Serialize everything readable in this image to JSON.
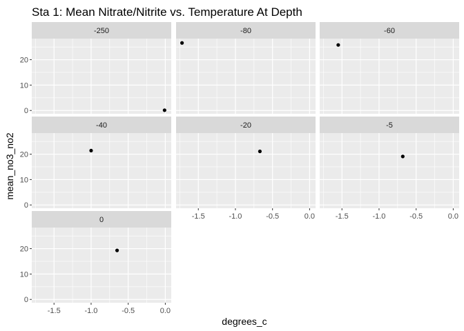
{
  "chart_data": {
    "type": "scatter",
    "title": "Sta 1: Mean Nitrate/Nitrite vs. Temperature At Depth",
    "xlabel": "degrees_c",
    "ylabel": "mean_no3_no2",
    "xlim": [
      -1.8,
      0.08
    ],
    "ylim": [
      -1.3,
      28.3
    ],
    "x_ticks": [
      -1.5,
      -1.0,
      -0.5,
      0.0
    ],
    "x_tick_labels": [
      "-1.5",
      "-1.0",
      "-0.5",
      "0.0"
    ],
    "y_ticks": [
      0,
      10,
      20
    ],
    "y_tick_labels": [
      "0",
      "10",
      "20"
    ],
    "grid": true,
    "legend": "none",
    "point_color": "#000000",
    "panel_background": "#ebebeb",
    "strip_background": "#d9d9d9",
    "panels": [
      {
        "label": "-250",
        "x": -0.01,
        "y": 0.1
      },
      {
        "label": "-80",
        "x": -1.72,
        "y": 26.6
      },
      {
        "label": "-60",
        "x": -1.55,
        "y": 25.8
      },
      {
        "label": "-40",
        "x": -1.0,
        "y": 21.4
      },
      {
        "label": "-20",
        "x": -0.67,
        "y": 21.1
      },
      {
        "label": "-5",
        "x": -0.68,
        "y": 19.1
      },
      {
        "label": "0",
        "x": -0.65,
        "y": 19.3
      }
    ]
  }
}
